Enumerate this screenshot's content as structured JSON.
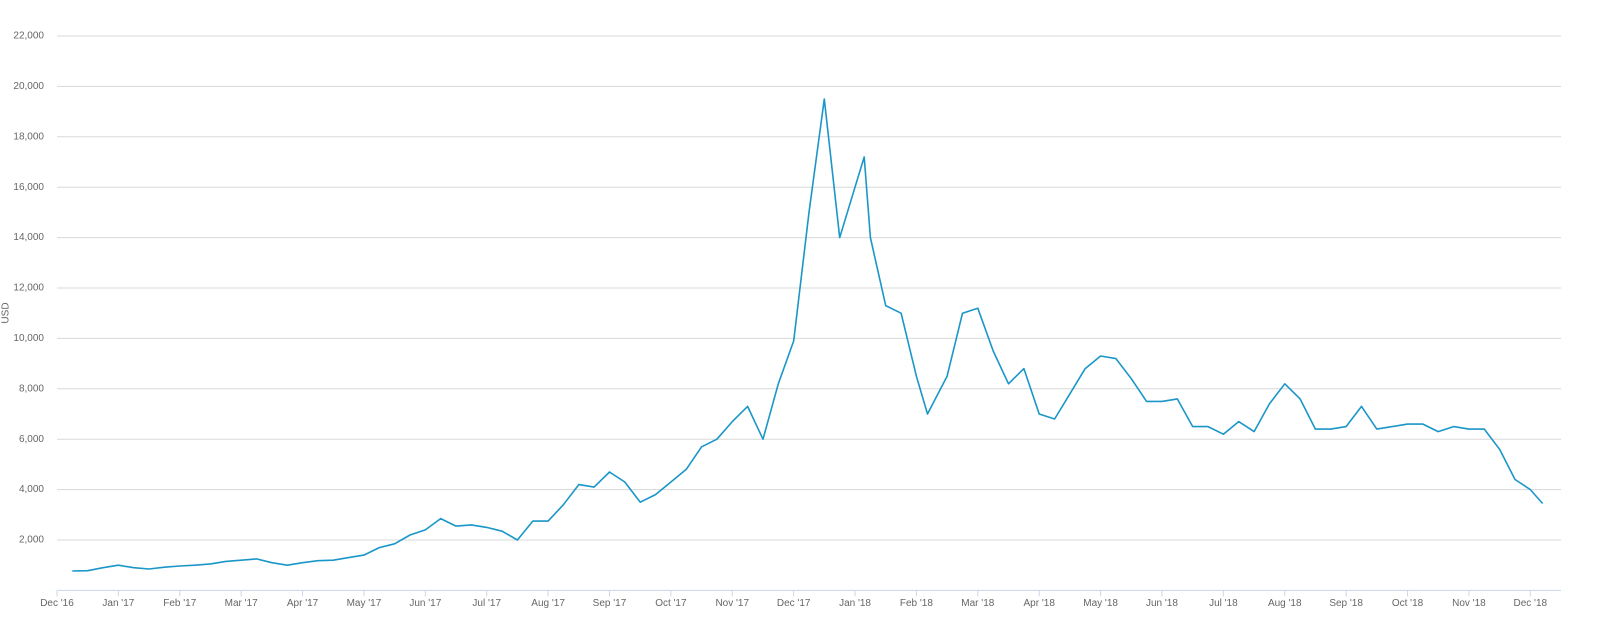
{
  "chart_data": {
    "type": "line",
    "y_label": "USD",
    "x": [
      0.25,
      0.5,
      0.75,
      1,
      1.25,
      1.5,
      1.75,
      2,
      2.25,
      2.5,
      2.75,
      3,
      3.25,
      3.5,
      3.75,
      4,
      4.25,
      4.5,
      4.75,
      5,
      5.25,
      5.5,
      5.75,
      6,
      6.25,
      6.5,
      6.75,
      7,
      7.25,
      7.5,
      7.75,
      8,
      8.25,
      8.5,
      8.75,
      9,
      9.25,
      9.5,
      9.75,
      10,
      10.25,
      10.5,
      10.75,
      11,
      11.25,
      11.5,
      11.75,
      12,
      12.25,
      12.5,
      12.75,
      13,
      13.15,
      13.25,
      13.5,
      13.75,
      14,
      14.18,
      14.5,
      14.75,
      15,
      15.25,
      15.5,
      15.75,
      16,
      16.25,
      16.5,
      16.75,
      17,
      17.25,
      17.5,
      17.75,
      18,
      18.25,
      18.5,
      18.75,
      19,
      19.25,
      19.5,
      19.75,
      20,
      20.25,
      20.5,
      20.75,
      21,
      21.25,
      21.5,
      21.75,
      22,
      22.25,
      22.5,
      22.75,
      23,
      23.25,
      23.5,
      23.75,
      24,
      24.2
    ],
    "series": [
      {
        "name": "USD",
        "color": "#1a96c8",
        "values": [
          770,
          780,
          900,
          1000,
          900,
          850,
          920,
          970,
          1000,
          1050,
          1150,
          1200,
          1250,
          1100,
          1000,
          1100,
          1180,
          1200,
          1300,
          1400,
          1700,
          1850,
          2200,
          2400,
          2850,
          2550,
          2600,
          2500,
          2350,
          2000,
          2750,
          2750,
          3400,
          4200,
          4100,
          4700,
          4300,
          3500,
          3800,
          4300,
          4800,
          5700,
          6000,
          6700,
          7300,
          6000,
          8200,
          9900,
          15000,
          19500,
          14000,
          16000,
          17200,
          14000,
          11300,
          11000,
          8500,
          7000,
          8500,
          11000,
          11200,
          9500,
          8200,
          8800,
          7000,
          6800,
          7800,
          8800,
          9300,
          9200,
          8400,
          7500,
          7500,
          7600,
          6500,
          6500,
          6200,
          6700,
          6300,
          7400,
          8200,
          7600,
          6400,
          6400,
          6500,
          7300,
          6400,
          6500,
          6600,
          6600,
          6300,
          6500,
          6400,
          6400,
          5600,
          4400,
          4000,
          3450
        ]
      }
    ],
    "xlim": [
      0,
      24.5
    ],
    "xticks": [
      {
        "value": 0,
        "label": "Dec '16"
      },
      {
        "value": 1,
        "label": "Jan '17"
      },
      {
        "value": 2,
        "label": "Feb '17"
      },
      {
        "value": 3,
        "label": "Mar '17"
      },
      {
        "value": 4,
        "label": "Apr '17"
      },
      {
        "value": 5,
        "label": "May '17"
      },
      {
        "value": 6,
        "label": "Jun '17"
      },
      {
        "value": 7,
        "label": "Jul '17"
      },
      {
        "value": 8,
        "label": "Aug '17"
      },
      {
        "value": 9,
        "label": "Sep '17"
      },
      {
        "value": 10,
        "label": "Oct '17"
      },
      {
        "value": 11,
        "label": "Nov '17"
      },
      {
        "value": 12,
        "label": "Dec '17"
      },
      {
        "value": 13,
        "label": "Jan '18"
      },
      {
        "value": 14,
        "label": "Feb '18"
      },
      {
        "value": 15,
        "label": "Mar '18"
      },
      {
        "value": 16,
        "label": "Apr '18"
      },
      {
        "value": 17,
        "label": "May '18"
      },
      {
        "value": 18,
        "label": "Jun '18"
      },
      {
        "value": 19,
        "label": "Jul '18"
      },
      {
        "value": 20,
        "label": "Aug '18"
      },
      {
        "value": 21,
        "label": "Sep '18"
      },
      {
        "value": 22,
        "label": "Oct '18"
      },
      {
        "value": 23,
        "label": "Nov '18"
      },
      {
        "value": 24,
        "label": "Dec '18"
      }
    ],
    "ylim": [
      0,
      22000
    ],
    "yticks": [
      {
        "value": 2000,
        "label": "2,000"
      },
      {
        "value": 4000,
        "label": "4,000"
      },
      {
        "value": 6000,
        "label": "6,000"
      },
      {
        "value": 8000,
        "label": "8,000"
      },
      {
        "value": 10000,
        "label": "10,000"
      },
      {
        "value": 12000,
        "label": "12,000"
      },
      {
        "value": 14000,
        "label": "14,000"
      },
      {
        "value": 16000,
        "label": "16,000"
      },
      {
        "value": 18000,
        "label": "18,000"
      },
      {
        "value": 20000,
        "label": "20,000"
      },
      {
        "value": 22000,
        "label": "22,000"
      }
    ],
    "grid": true
  }
}
